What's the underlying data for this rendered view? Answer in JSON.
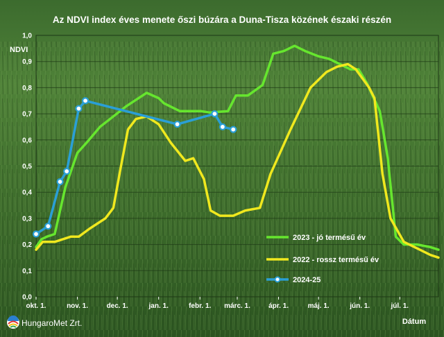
{
  "chart_data": {
    "type": "line",
    "title": "Az NDVI index éves menete őszi búzára a Duna-Tisza közének északi részén",
    "ylabel": "NDVI",
    "xlabel": "Dátum",
    "ylim": [
      0,
      1.0
    ],
    "y_ticks": [
      "0,0",
      "0,1",
      "0,2",
      "0,3",
      "0,4",
      "0,5",
      "0,6",
      "0,7",
      "0,8",
      "0,9",
      "1,0"
    ],
    "x_ticks": [
      "okt. 1.",
      "nov. 1.",
      "dec. 1.",
      "jan. 1.",
      "febr. 1.",
      "márc. 1.",
      "ápr. 1.",
      "máj. 1.",
      "jún. 1.",
      "júl. 1."
    ],
    "x_unit": "days since okt. 1.",
    "xlim": [
      0,
      302
    ],
    "grid": true,
    "legend_position": "bottom-right",
    "series": [
      {
        "name": "2023 - jó termésű év",
        "color": "#66e62e",
        "marker": false,
        "points": [
          [
            0,
            0.19
          ],
          [
            4,
            0.22
          ],
          [
            8,
            0.23
          ],
          [
            14,
            0.24
          ],
          [
            22,
            0.42
          ],
          [
            31,
            0.55
          ],
          [
            38,
            0.59
          ],
          [
            48,
            0.65
          ],
          [
            58,
            0.69
          ],
          [
            68,
            0.73
          ],
          [
            83,
            0.78
          ],
          [
            92,
            0.76
          ],
          [
            96,
            0.74
          ],
          [
            108,
            0.71
          ],
          [
            124,
            0.71
          ],
          [
            130,
            0.705
          ],
          [
            144,
            0.71
          ],
          [
            150,
            0.77
          ],
          [
            159,
            0.77
          ],
          [
            170,
            0.81
          ],
          [
            178,
            0.93
          ],
          [
            186,
            0.94
          ],
          [
            194,
            0.96
          ],
          [
            202,
            0.94
          ],
          [
            212,
            0.92
          ],
          [
            220,
            0.91
          ],
          [
            228,
            0.89
          ],
          [
            236,
            0.87
          ],
          [
            242,
            0.87
          ],
          [
            248,
            0.82
          ],
          [
            258,
            0.71
          ],
          [
            264,
            0.53
          ],
          [
            270,
            0.23
          ],
          [
            276,
            0.2
          ],
          [
            286,
            0.2
          ],
          [
            296,
            0.19
          ],
          [
            302,
            0.18
          ]
        ]
      },
      {
        "name": "2022 - rossz termésű év",
        "color": "#f0e81e",
        "marker": false,
        "points": [
          [
            0,
            0.18
          ],
          [
            5,
            0.21
          ],
          [
            14,
            0.21
          ],
          [
            20,
            0.22
          ],
          [
            26,
            0.23
          ],
          [
            32,
            0.23
          ],
          [
            40,
            0.26
          ],
          [
            52,
            0.3
          ],
          [
            58,
            0.34
          ],
          [
            63,
            0.48
          ],
          [
            69,
            0.64
          ],
          [
            75,
            0.68
          ],
          [
            83,
            0.69
          ],
          [
            92,
            0.66
          ],
          [
            101,
            0.59
          ],
          [
            112,
            0.52
          ],
          [
            118,
            0.53
          ],
          [
            126,
            0.45
          ],
          [
            131,
            0.33
          ],
          [
            138,
            0.31
          ],
          [
            148,
            0.31
          ],
          [
            157,
            0.33
          ],
          [
            168,
            0.34
          ],
          [
            176,
            0.47
          ],
          [
            191,
            0.64
          ],
          [
            206,
            0.8
          ],
          [
            218,
            0.86
          ],
          [
            226,
            0.88
          ],
          [
            234,
            0.89
          ],
          [
            240,
            0.87
          ],
          [
            250,
            0.8
          ],
          [
            254,
            0.76
          ],
          [
            260,
            0.47
          ],
          [
            266,
            0.3
          ],
          [
            276,
            0.21
          ],
          [
            288,
            0.18
          ],
          [
            296,
            0.16
          ],
          [
            302,
            0.15
          ]
        ]
      },
      {
        "name": "2024-25",
        "color": "#2a9fd6",
        "marker": true,
        "points": [
          [
            0,
            0.24
          ],
          [
            9,
            0.27
          ],
          [
            18,
            0.44
          ],
          [
            23,
            0.48
          ],
          [
            32,
            0.72
          ],
          [
            37,
            0.75
          ],
          [
            106,
            0.66
          ],
          [
            134,
            0.7
          ],
          [
            140,
            0.65
          ],
          [
            148,
            0.64
          ]
        ]
      }
    ]
  },
  "logo": {
    "text": "HungaroMet Zrt.",
    "colors": [
      "#2a7fd0",
      "#e5322d",
      "#f4c20d",
      "#34a853",
      "#ffffff"
    ]
  }
}
